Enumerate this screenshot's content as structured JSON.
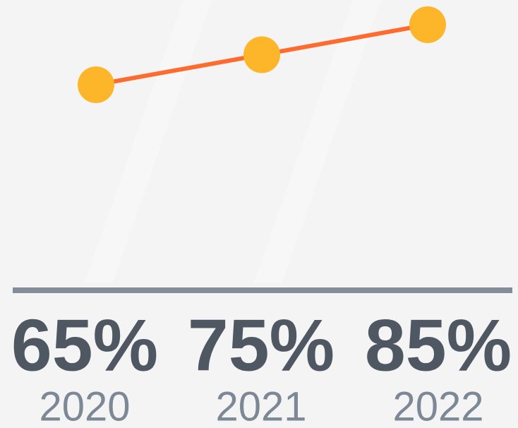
{
  "chart_data": {
    "type": "line",
    "categories": [
      "2020",
      "2021",
      "2022"
    ],
    "values": [
      65,
      75,
      85
    ],
    "value_labels": [
      "65%",
      "75%",
      "85%"
    ],
    "color": "#ff6b2e",
    "marker_color": "#fdb52a"
  }
}
